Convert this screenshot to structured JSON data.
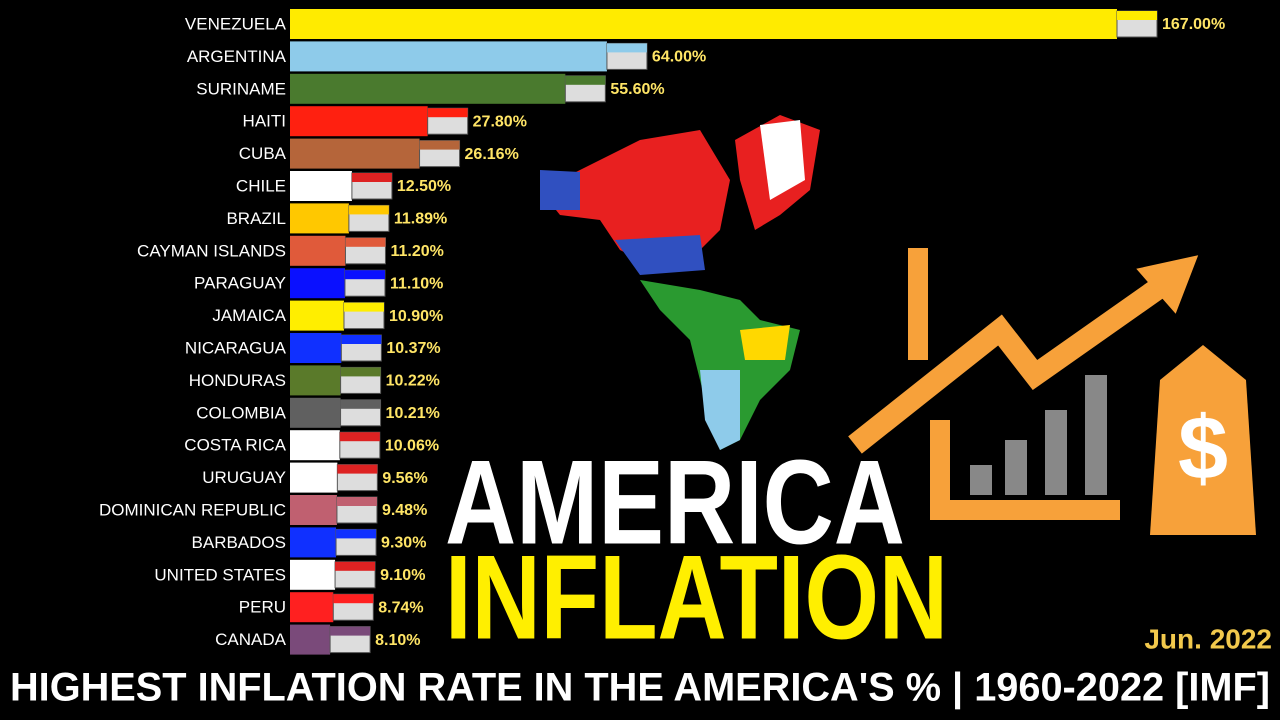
{
  "chart_data": {
    "type": "bar",
    "orientation": "horizontal",
    "title": "HIGHEST INFLATION RATE IN THE AMERICA'S % | 1960-2022 [IMF]",
    "annotations": [
      "AMERICA",
      "INFLATION",
      "Jun. 2022",
      "$"
    ],
    "categories": [
      "VENEZUELA",
      "ARGENTINA",
      "SURINAME",
      "HAITI",
      "CUBA",
      "CHILE",
      "BRAZIL",
      "CAYMAN ISLANDS",
      "PARAGUAY",
      "JAMAICA",
      "NICARAGUA",
      "HONDURAS",
      "COLOMBIA",
      "COSTA RICA",
      "URUGUAY",
      "DOMINICAN REPUBLIC",
      "BARBADOS",
      "UNITED STATES",
      "PERU",
      "CANADA"
    ],
    "values": [
      167.0,
      64.0,
      55.6,
      27.8,
      26.16,
      12.5,
      11.89,
      11.2,
      11.1,
      10.9,
      10.37,
      10.22,
      10.21,
      10.06,
      9.56,
      9.48,
      9.3,
      9.1,
      8.74,
      8.1
    ],
    "value_labels": [
      "167.00%",
      "64.00%",
      "55.60%",
      "27.80%",
      "26.16%",
      "12.50%",
      "11.89%",
      "11.20%",
      "11.10%",
      "10.90%",
      "10.37%",
      "10.22%",
      "10.21%",
      "10.06%",
      "9.56%",
      "9.48%",
      "9.30%",
      "9.10%",
      "8.74%",
      "8.10%"
    ],
    "colors": [
      "#ffeb00",
      "#8ecbea",
      "#4a7a2e",
      "#ff2010",
      "#b5653a",
      "#ffffff",
      "#ffc800",
      "#e05a3a",
      "#0a10ff",
      "#ffee00",
      "#1030ff",
      "#5a7a2a",
      "#606060",
      "#ffffff",
      "#ffffff",
      "#c06070",
      "#1030ff",
      "#ffffff",
      "#ff2020",
      "#7a4a7a"
    ]
  }
}
